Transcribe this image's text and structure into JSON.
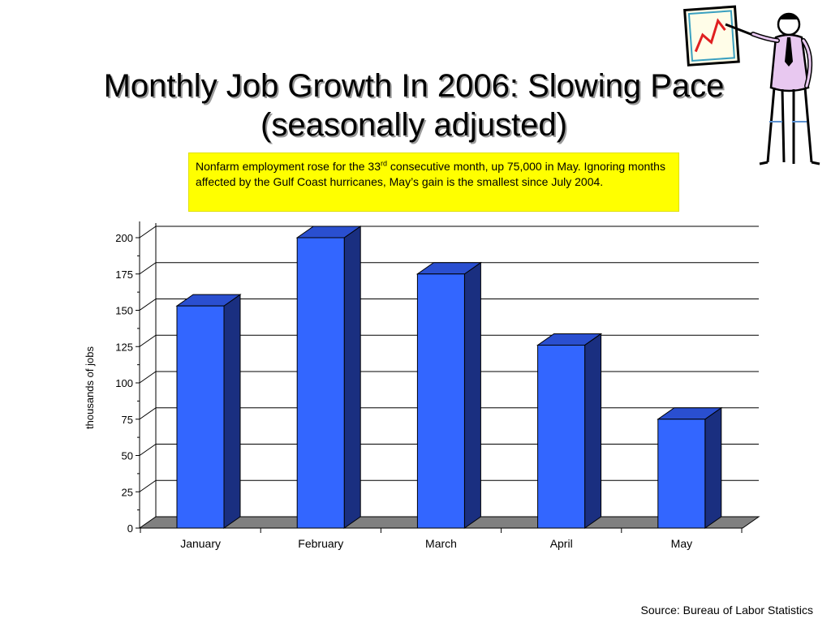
{
  "slide": {
    "title_line1": "Monthly Job Growth In 2006: Slowing Pace",
    "title_line2": "(seasonally adjusted)",
    "callout": {
      "part1": "Nonfarm employment rose for the 33",
      "superscript": "rd",
      "part2": " consecutive month, up 75,000 in May. Ignoring months affected by the Gulf Coast hurricanes, May’s gain is the smallest since July 2004."
    },
    "source": "Source: Bureau of Labor Statistics",
    "clipart_icon": "presenter-pointing-at-chart-icon"
  },
  "chart_data": {
    "type": "bar",
    "title": "",
    "categories": [
      "January",
      "February",
      "March",
      "April",
      "May"
    ],
    "values": [
      153,
      200,
      175,
      126,
      75
    ],
    "xlabel": "",
    "ylabel": "thousands of jobs",
    "ylim": [
      0,
      200
    ],
    "yticks": [
      0,
      25,
      50,
      75,
      100,
      125,
      150,
      175,
      200
    ],
    "grid": true,
    "legend": "none",
    "style": "3d",
    "colors": {
      "bar_front": "#3366ff",
      "bar_side": "#1a2f80",
      "bar_top": "#2a4fd0",
      "floor": "#808080"
    }
  }
}
